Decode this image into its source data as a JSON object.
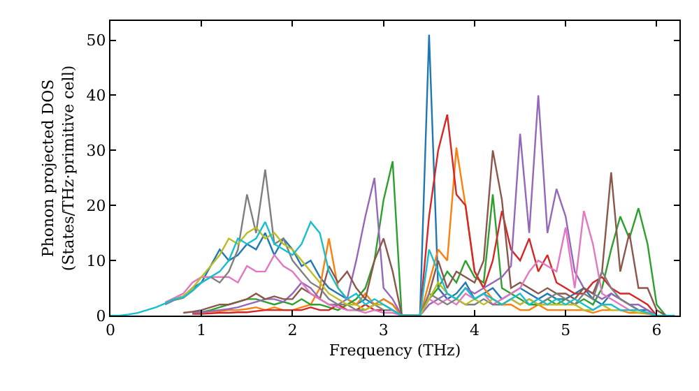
{
  "chart_data": {
    "type": "line",
    "xlabel": "Frequency (THz)",
    "ylabel": "Phonon projected DOS\n(States/THz·primitive cell)",
    "x": [
      0.0,
      0.1,
      0.2,
      0.3,
      0.4,
      0.5,
      0.6,
      0.7,
      0.8,
      0.9,
      1.0,
      1.1,
      1.2,
      1.3,
      1.4,
      1.5,
      1.6,
      1.7,
      1.8,
      1.9,
      2.0,
      2.1,
      2.2,
      2.3,
      2.4,
      2.5,
      2.6,
      2.7,
      2.8,
      2.9,
      3.0,
      3.1,
      3.2,
      3.3,
      3.4,
      3.5,
      3.6,
      3.7,
      3.8,
      3.9,
      4.0,
      4.1,
      4.2,
      4.3,
      4.4,
      4.5,
      4.6,
      4.7,
      4.8,
      4.9,
      5.0,
      5.1,
      5.2,
      5.3,
      5.4,
      5.5,
      5.6,
      5.7,
      5.8,
      5.9,
      6.0,
      6.1,
      6.2
    ],
    "xlim": [
      0,
      6.25
    ],
    "xticks": [
      0,
      1,
      2,
      3,
      4,
      5,
      6
    ],
    "ylim": [
      0,
      53.5
    ],
    "yticks": [
      0,
      10,
      20,
      30,
      40,
      50
    ],
    "marker": "none",
    "line_style": "solid",
    "series": [
      {
        "color": "#1f77b4",
        "values": [
          null,
          null,
          null,
          null,
          null,
          null,
          null,
          3,
          3.5,
          5,
          6,
          9,
          12,
          10,
          11,
          13,
          12,
          15,
          11,
          14,
          12,
          9,
          10,
          7,
          5,
          4,
          3,
          2,
          3,
          2,
          3,
          2,
          0,
          0,
          0,
          51,
          5,
          3,
          4,
          6,
          3,
          4,
          5,
          3,
          4,
          5,
          4,
          3,
          4,
          3,
          3,
          4,
          5,
          3,
          2,
          4,
          3,
          2,
          1,
          1,
          0,
          null,
          null
        ]
      },
      {
        "color": "#ff7f0e",
        "values": [
          null,
          null,
          null,
          null,
          null,
          null,
          null,
          null,
          null,
          0.5,
          0.6,
          0.7,
          0.8,
          1,
          1,
          1.2,
          1.5,
          1,
          1.5,
          1,
          1,
          1.5,
          2,
          5,
          14,
          5,
          3,
          2,
          4,
          2,
          3,
          2,
          0,
          0,
          0,
          6,
          12,
          10,
          30.5,
          20,
          8,
          5,
          3,
          2,
          2,
          1,
          1,
          2,
          1,
          1,
          1,
          1,
          1,
          0.5,
          1,
          1,
          1,
          0.5,
          0.5,
          0.3,
          0,
          null,
          null
        ]
      },
      {
        "color": "#2ca02c",
        "values": [
          null,
          null,
          null,
          null,
          null,
          null,
          null,
          null,
          null,
          0.5,
          0.6,
          1,
          1.5,
          2,
          2.5,
          3,
          3,
          2.5,
          2,
          2.5,
          2,
          3,
          2,
          2,
          1.5,
          1,
          2,
          3,
          5,
          10,
          21,
          28,
          0,
          0,
          0,
          3,
          5,
          8,
          6,
          10,
          7,
          6,
          22,
          5,
          4,
          3,
          2,
          2,
          3,
          2,
          3,
          2,
          3,
          2,
          5,
          12,
          18,
          14,
          19.5,
          13,
          2,
          0,
          null
        ]
      },
      {
        "color": "#d62728",
        "values": [
          null,
          null,
          null,
          null,
          null,
          null,
          null,
          null,
          null,
          0.3,
          0.3,
          0.4,
          0.5,
          0.5,
          0.6,
          0.6,
          0.8,
          1,
          1,
          1,
          1,
          1,
          1.5,
          1,
          1,
          2,
          1,
          1,
          2,
          1,
          1,
          1,
          0,
          0,
          0,
          18,
          30,
          36.5,
          22,
          20,
          8,
          5,
          10,
          19,
          12,
          10,
          14,
          8,
          11,
          6,
          5,
          4,
          4,
          6,
          7,
          5,
          4,
          4,
          3,
          2,
          0,
          null,
          null
        ]
      },
      {
        "color": "#9467bd",
        "values": [
          null,
          null,
          null,
          null,
          null,
          null,
          null,
          null,
          null,
          0.5,
          0.6,
          0.8,
          1,
          1.2,
          1.5,
          2,
          2.5,
          3,
          3,
          2.5,
          4,
          6,
          5,
          3,
          2,
          2,
          3,
          10,
          18,
          25,
          5,
          3,
          0,
          0,
          0,
          2,
          3,
          4,
          3,
          5,
          4,
          5,
          6,
          7,
          9,
          33,
          15,
          40,
          15,
          23,
          18,
          8,
          5,
          4,
          3,
          4,
          3,
          2,
          2,
          1,
          0,
          null,
          null
        ]
      },
      {
        "color": "#8c564b",
        "values": [
          null,
          null,
          null,
          null,
          null,
          null,
          null,
          null,
          0.5,
          0.7,
          1,
          1.5,
          2,
          2,
          2.5,
          3,
          4,
          3,
          3.5,
          3,
          3,
          5,
          4,
          3,
          9,
          6,
          8,
          5,
          3,
          10,
          14,
          8,
          0,
          0,
          0,
          4,
          10,
          5,
          8,
          7,
          6,
          10,
          30,
          21,
          5,
          6,
          5,
          4,
          5,
          4,
          4,
          3,
          5,
          4,
          8,
          26,
          8,
          15,
          5,
          5,
          1,
          0,
          null
        ]
      },
      {
        "color": "#e377c2",
        "values": [
          null,
          null,
          null,
          null,
          null,
          null,
          2.4,
          3.2,
          4,
          6,
          7,
          7,
          7,
          7,
          6,
          9,
          8,
          8,
          11,
          9,
          8,
          6,
          4,
          3,
          2,
          1.5,
          1,
          1,
          0.5,
          1,
          0.5,
          0.5,
          0,
          0,
          0,
          3,
          2,
          3,
          2,
          4,
          3,
          4,
          2,
          3,
          4,
          5,
          8,
          10,
          9,
          8,
          16,
          5,
          19,
          13,
          4,
          3,
          2,
          1,
          1,
          0.5,
          0,
          null,
          null
        ]
      },
      {
        "color": "#7f7f7f",
        "values": [
          null,
          null,
          null,
          null,
          null,
          null,
          2,
          2.8,
          3.2,
          4.5,
          6,
          7,
          6,
          8,
          12,
          22,
          15,
          26.5,
          13,
          14,
          10,
          8,
          6,
          5,
          3,
          2,
          2,
          1,
          1,
          2,
          1,
          1,
          0,
          0,
          0,
          4,
          3,
          2,
          3,
          2,
          2,
          3,
          2,
          2,
          3,
          2,
          3,
          2,
          3,
          4,
          3,
          2,
          4,
          3,
          8,
          5,
          3,
          2,
          1,
          0.5,
          0,
          null,
          null
        ]
      },
      {
        "color": "#bcbd22",
        "values": [
          null,
          null,
          null,
          null,
          null,
          null,
          null,
          3,
          3.5,
          5,
          7,
          9,
          11,
          14,
          13,
          15,
          16,
          14,
          15,
          13,
          12,
          10,
          8,
          6,
          4,
          3,
          2,
          2,
          1,
          2,
          2,
          1,
          0,
          0,
          0,
          3,
          6,
          4,
          3,
          2,
          3,
          2,
          3,
          2,
          3,
          2,
          3,
          2,
          2,
          2,
          2,
          2,
          1,
          1,
          2,
          1,
          1,
          1,
          0.5,
          0.5,
          0,
          null,
          null
        ]
      },
      {
        "color": "#17becf",
        "values": [
          0,
          0,
          0.2,
          0.5,
          1,
          1.5,
          2.2,
          3,
          3.3,
          4.5,
          6,
          7,
          8,
          10,
          14,
          13,
          14,
          17,
          13,
          12,
          11,
          13,
          17,
          15,
          8,
          5,
          3,
          4,
          2,
          3,
          2,
          1,
          0,
          0,
          0,
          12,
          8,
          4,
          3,
          5,
          3,
          4,
          3,
          2,
          3,
          4,
          2,
          3,
          2,
          3,
          2,
          3,
          2,
          1,
          2,
          2,
          1,
          1,
          1,
          0.5,
          0,
          0,
          0
        ]
      }
    ]
  }
}
